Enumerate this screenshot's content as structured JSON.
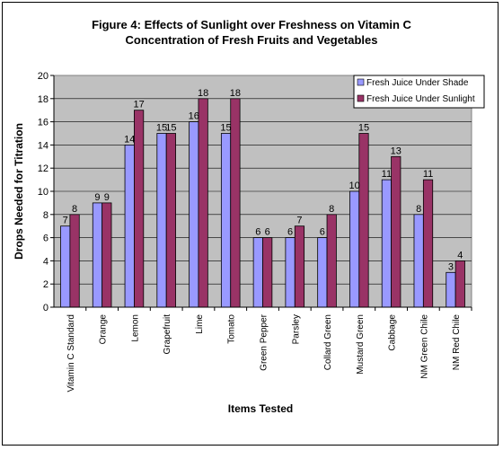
{
  "chart_data": {
    "type": "bar",
    "title_line1": "Figure 4: Effects of Sunlight over Freshness on Vitamin C",
    "title_line2": "Concentration of Fresh Fruits and Vegetables",
    "xlabel": "Items Tested",
    "ylabel": "Drops Needed for Titration",
    "ylim": [
      0,
      20
    ],
    "yticks": [
      0,
      2,
      4,
      6,
      8,
      10,
      12,
      14,
      16,
      18,
      20
    ],
    "grid": true,
    "legend_position": "top-right",
    "plot_background": "#c0c0c0",
    "categories": [
      "Vitamin C Standard",
      "Orange",
      "Lemon",
      "Grapefruit",
      "Lime",
      "Tomato",
      "Green Pepper",
      "Parsley",
      "Collard Green",
      "Mustard Green",
      "Cabbage",
      "NM Green Chile",
      "NM Red Chile"
    ],
    "series": [
      {
        "name": "Fresh Juice Under Shade",
        "color": "#9999ff",
        "values": [
          7,
          9,
          14,
          15,
          16,
          15,
          6,
          6,
          6,
          10,
          11,
          8,
          3
        ]
      },
      {
        "name": "Fresh Juice Under Sunlight",
        "color": "#993366",
        "values": [
          8,
          9,
          17,
          15,
          18,
          18,
          6,
          7,
          8,
          15,
          13,
          11,
          4
        ]
      }
    ]
  }
}
